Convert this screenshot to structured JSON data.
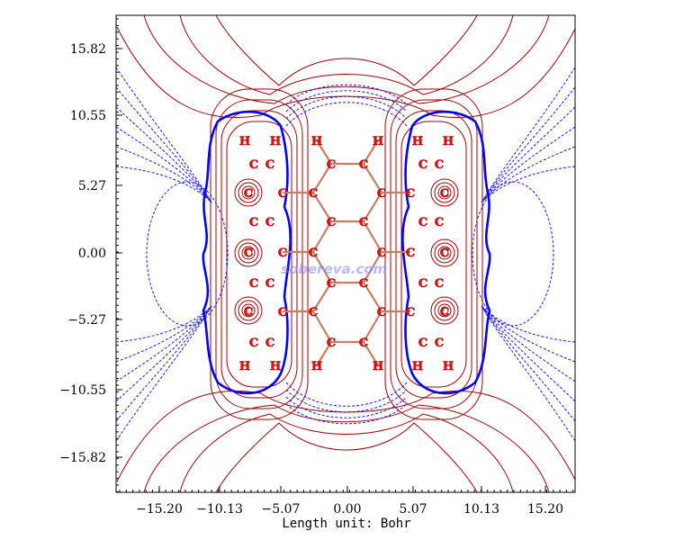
{
  "watermark": "sobereva.com",
  "axis": {
    "xlabel": "Length unit: Bohr",
    "x_ticks": [
      "−15.20",
      "−10.13",
      "−5.07",
      "0.00",
      "5.07",
      "10.13",
      "15.20"
    ],
    "y_ticks": [
      "15.82",
      "10.55",
      "5.27",
      "0.00",
      "−5.27",
      "−10.55",
      "−15.82"
    ]
  },
  "colors": {
    "positive_contour": "#a00000",
    "negative_contour": "#1a1aff",
    "isosurface": "#0000ff",
    "bond": "#c48060",
    "atom": "#ff0000"
  },
  "atoms": {
    "left_group_labels": [
      "H",
      "H",
      "C",
      "C",
      "C",
      "C",
      "C",
      "C",
      "C",
      "C",
      "C",
      "C",
      "C",
      "C",
      "C",
      "C",
      "H",
      "H"
    ],
    "center_labels": [
      "H",
      "H",
      "C",
      "C",
      "C",
      "C",
      "C",
      "C",
      "C",
      "C",
      "C",
      "C",
      "C",
      "C",
      "C",
      "C",
      "H",
      "H"
    ],
    "right_group_labels": [
      "H",
      "H",
      "C",
      "C",
      "C",
      "C",
      "C",
      "C",
      "C",
      "C",
      "C",
      "C",
      "C",
      "C",
      "C",
      "C",
      "H",
      "H"
    ]
  }
}
